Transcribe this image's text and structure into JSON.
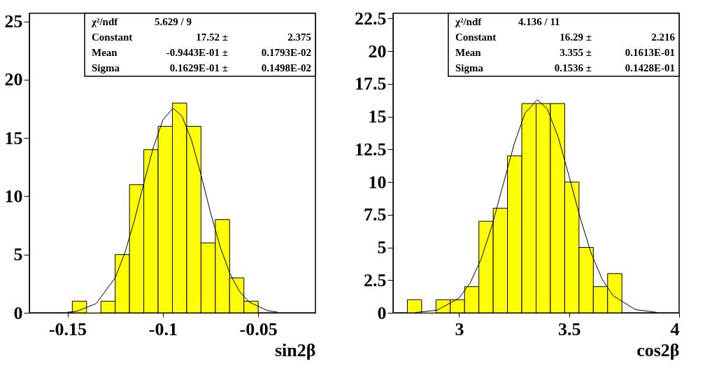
{
  "chart_data": [
    {
      "type": "histogram",
      "xlabel": "sin2β",
      "color": "#ffff00",
      "bins": [
        -0.1475,
        -0.14,
        -0.1325,
        -0.125,
        -0.1175,
        -0.11,
        -0.1025,
        -0.095,
        -0.0875,
        -0.08,
        -0.0725,
        -0.065,
        -0.0575,
        -0.05
      ],
      "values": [
        1,
        0,
        1,
        5,
        11,
        14,
        16,
        18,
        16,
        6,
        8,
        3,
        1
      ],
      "series": [
        {
          "type": "line",
          "color": "#000000",
          "x": [
            -0.15,
            -0.145,
            -0.135,
            -0.125,
            -0.12,
            -0.115,
            -0.11,
            -0.105,
            -0.1,
            -0.095,
            -0.0944,
            -0.09,
            -0.085,
            -0.08,
            -0.075,
            -0.07,
            -0.065,
            -0.06,
            -0.055,
            -0.045,
            -0.04
          ],
          "values": [
            0.05,
            0.14,
            0.79,
            3.01,
            5.11,
            7.89,
            11.1,
            14.19,
            16.53,
            17.51,
            17.52,
            16.88,
            14.82,
            11.83,
            8.6,
            5.69,
            3.42,
            1.88,
            0.94,
            0.18,
            0.07
          ]
        }
      ],
      "xlim": [
        -0.17,
        -0.02
      ],
      "xticks": [
        -0.15,
        -0.1,
        -0.05
      ],
      "ylim": [
        0,
        25.7
      ],
      "yticks": [
        0,
        5,
        10,
        15,
        20,
        25
      ],
      "annotations": [
        "χ²/ndf  5.629 / 9",
        "Constant  17.52 ±  2.375",
        "Mean  -0.9443E-01 ±  0.1793E-02",
        "Sigma  0.1629E-01 ±  0.1498E-02"
      ]
    },
    {
      "type": "histogram",
      "xlabel": "cos2β",
      "color": "#ffff00",
      "bins": [
        2.765,
        2.83,
        2.895,
        2.96,
        3.025,
        3.09,
        3.155,
        3.22,
        3.285,
        3.35,
        3.415,
        3.48,
        3.545,
        3.61,
        3.675,
        3.74
      ],
      "values": [
        1,
        0,
        1,
        1,
        2,
        7,
        8,
        12,
        16,
        16,
        16,
        10,
        5,
        2,
        3
      ],
      "series": [
        {
          "type": "line",
          "color": "#000000",
          "x": [
            2.8,
            2.9,
            3.0,
            3.05,
            3.1,
            3.15,
            3.2,
            3.25,
            3.3,
            3.355,
            3.4,
            3.45,
            3.5,
            3.55,
            3.6,
            3.65,
            3.7,
            3.8,
            3.9
          ],
          "values": [
            0.02,
            0.2,
            1.13,
            2.27,
            4.11,
            6.68,
            9.79,
            12.89,
            15.28,
            16.29,
            15.61,
            13.46,
            10.43,
            7.28,
            4.57,
            2.57,
            1.31,
            0.25,
            0.03
          ]
        }
      ],
      "xlim": [
        2.7,
        4
      ],
      "xticks": [
        3,
        3.5,
        4
      ],
      "ylim": [
        0,
        22.9
      ],
      "yticks": [
        0,
        2.5,
        5,
        7.5,
        10,
        12.5,
        15,
        17.5,
        20,
        22.5
      ],
      "annotations": [
        "χ²/ndf  4.136 / 11",
        "Constant  16.29 ±  2.216",
        "Mean  3.355 ±  0.1613E-01",
        "Sigma  0.1536 ±  0.1428E-01"
      ]
    }
  ]
}
